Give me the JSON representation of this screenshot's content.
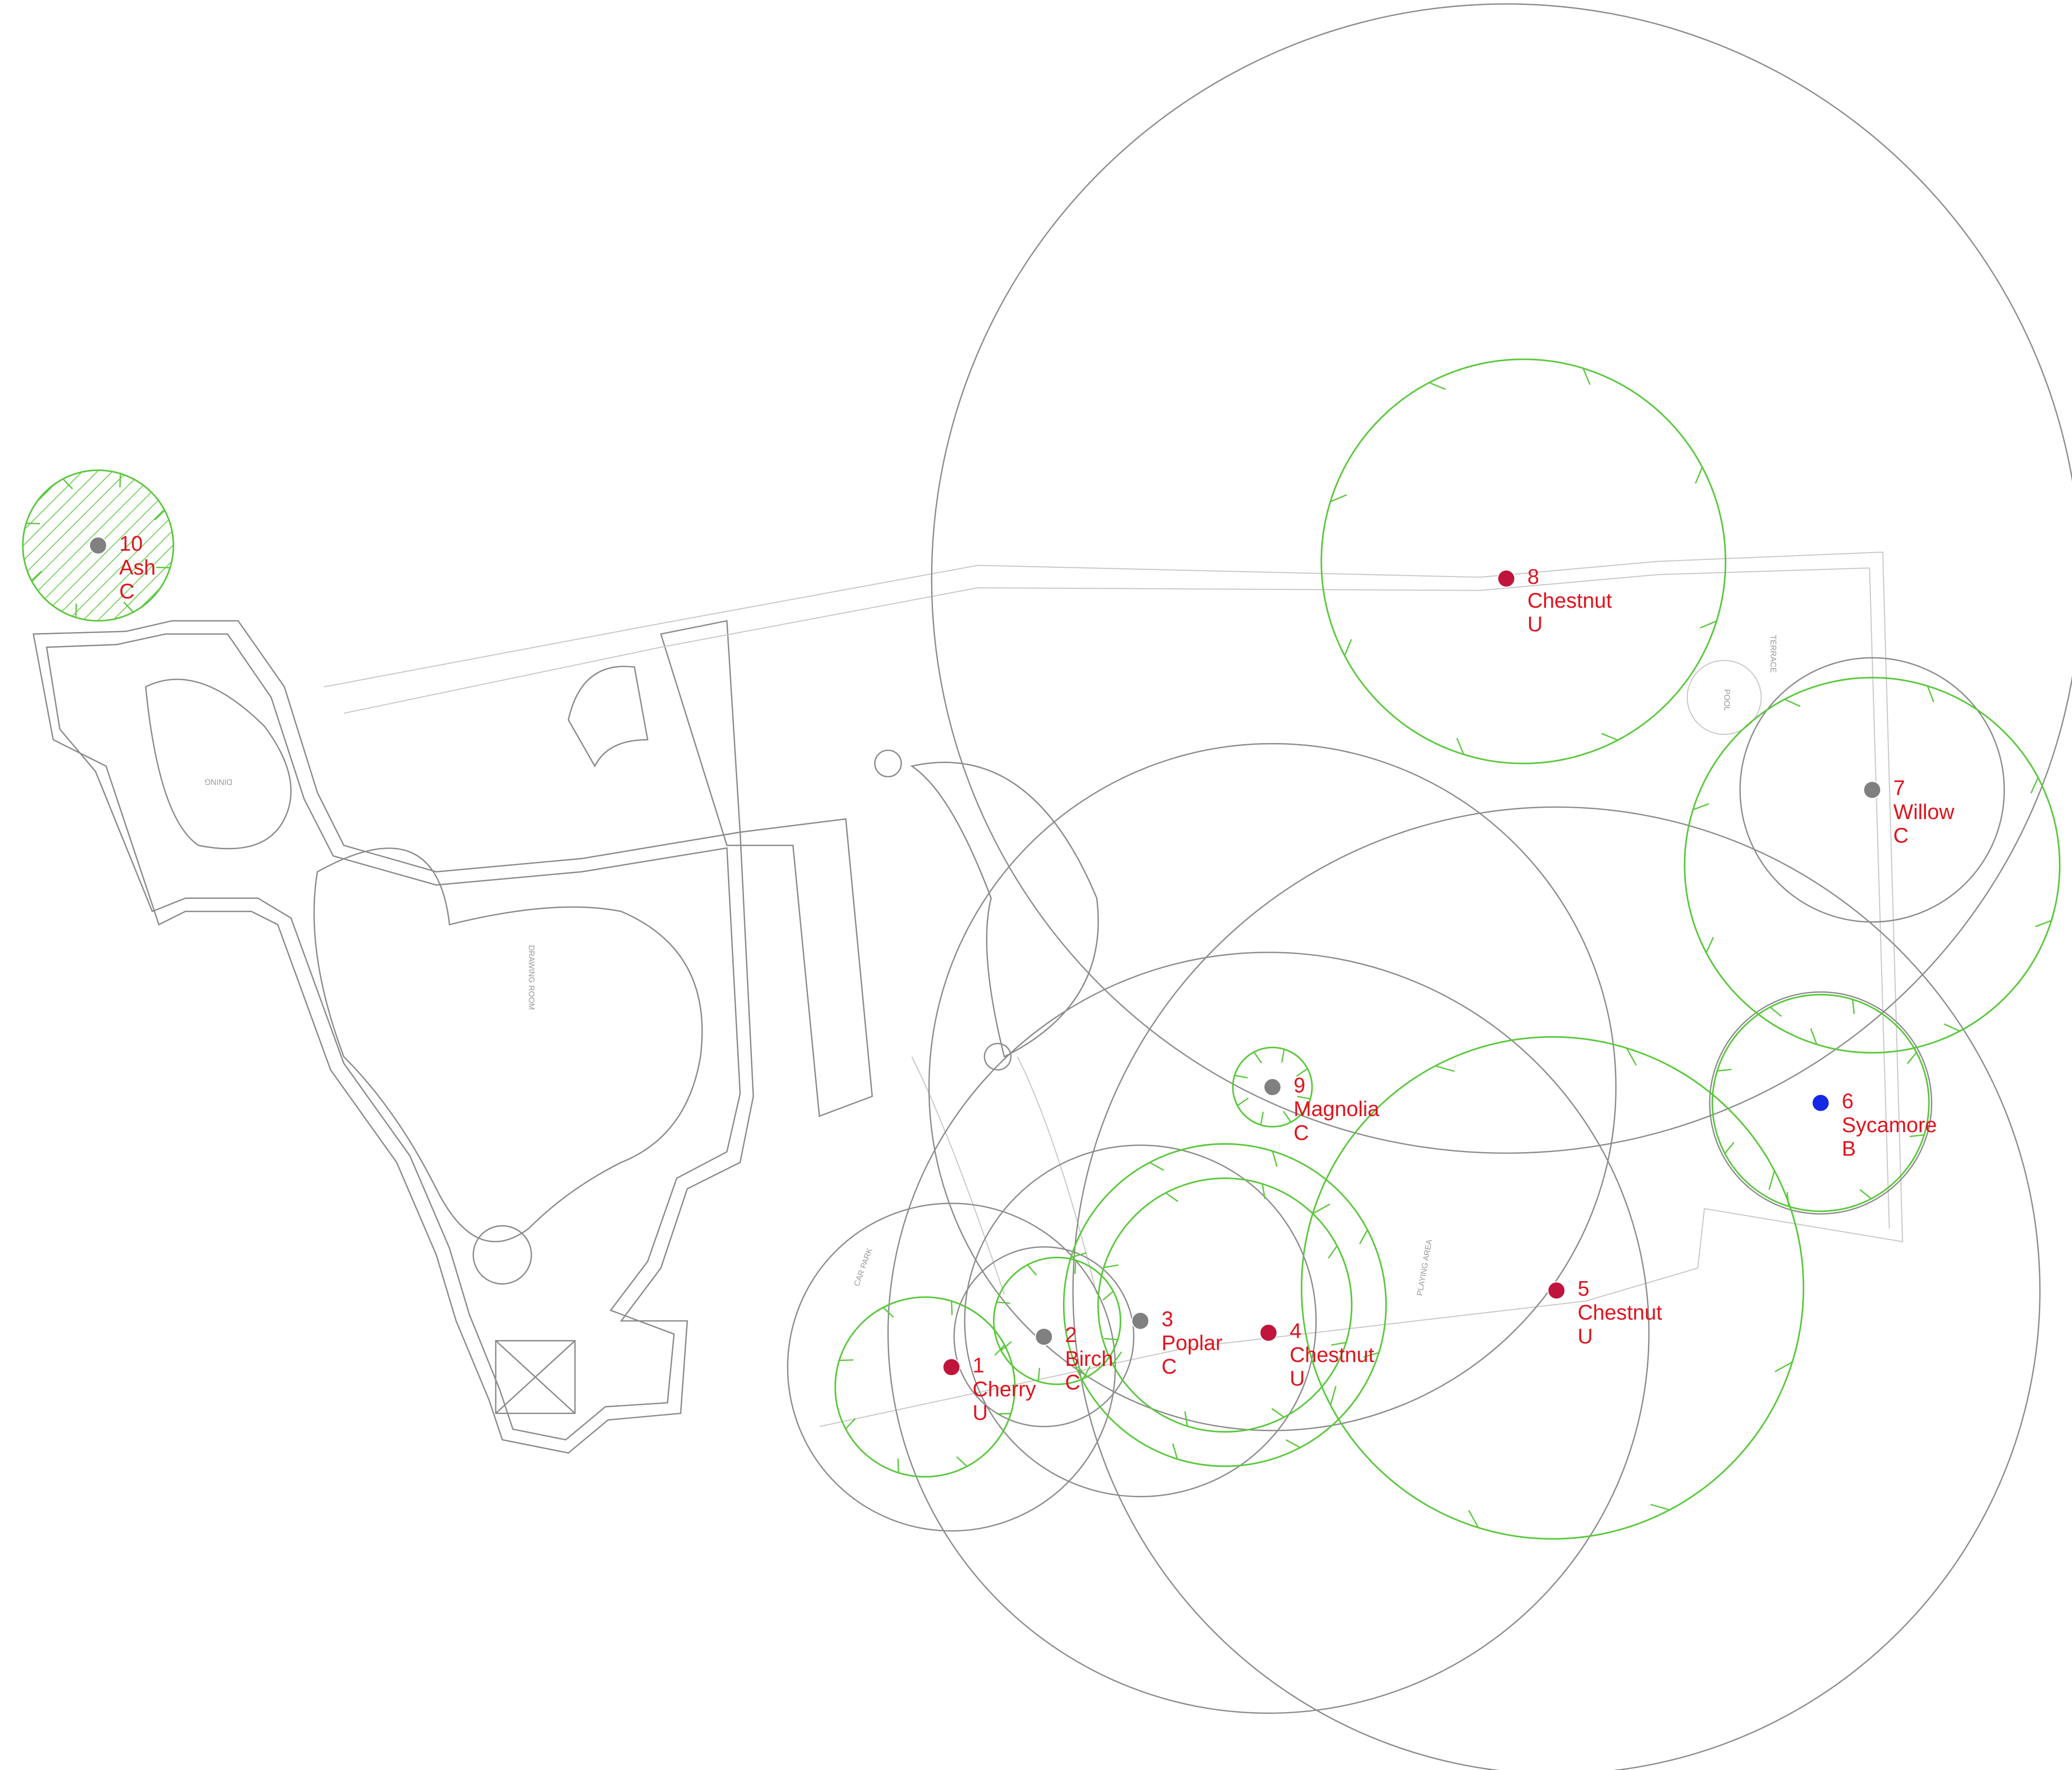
{
  "trees": [
    {
      "number": 1,
      "species": "Cherry",
      "category": "U",
      "color": "#c0143c"
    },
    {
      "number": 2,
      "species": "Birch",
      "category": "C",
      "color": "#808080"
    },
    {
      "number": 3,
      "species": "Poplar",
      "category": "C",
      "color": "#808080"
    },
    {
      "number": 4,
      "species": "Chestnut",
      "category": "U",
      "color": "#c0143c"
    },
    {
      "number": 5,
      "species": "Chestnut",
      "category": "U",
      "color": "#c0143c"
    },
    {
      "number": 6,
      "species": "Sycamore",
      "category": "B",
      "color": "#1428e6"
    },
    {
      "number": 7,
      "species": "Willow",
      "category": "C",
      "color": "#808080"
    },
    {
      "number": 8,
      "species": "Chestnut",
      "category": "U",
      "color": "#c0143c"
    },
    {
      "number": 9,
      "species": "Magnolia",
      "category": "C",
      "color": "#808080"
    },
    {
      "number": 10,
      "species": "Ash",
      "category": "C",
      "color": "#808080"
    }
  ],
  "site_labels": [
    "DINING",
    "DRAWING ROOM",
    "CAR PARK",
    "PLAYING AREA",
    "POOL",
    "TERRACE"
  ]
}
